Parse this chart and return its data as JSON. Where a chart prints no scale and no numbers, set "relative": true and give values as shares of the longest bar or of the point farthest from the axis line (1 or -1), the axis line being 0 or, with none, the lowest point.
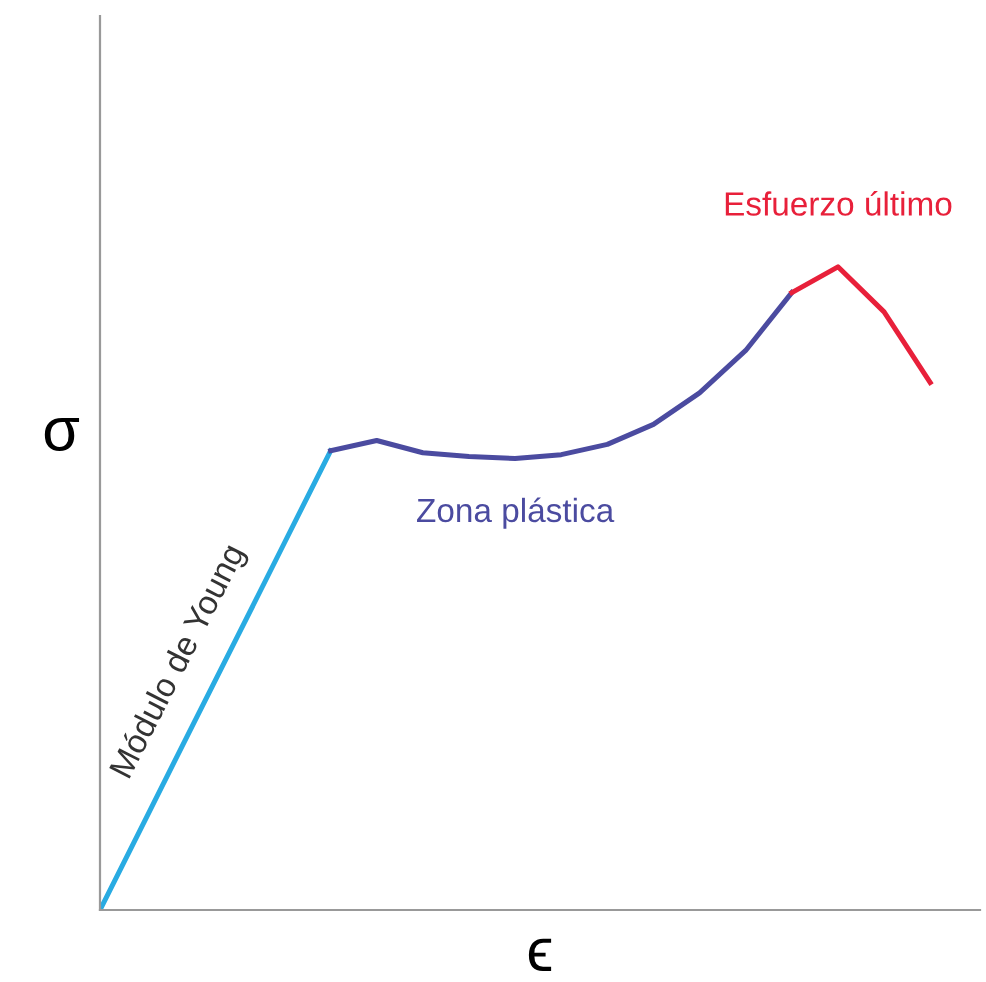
{
  "chart_data": {
    "type": "line",
    "relative": true,
    "xlabel": "ϵ",
    "ylabel": "σ",
    "marker": "none",
    "line_style": "solid",
    "categories": [
      null,
      null,
      null,
      null,
      null,
      null,
      null,
      null,
      null,
      null,
      null,
      null,
      null,
      null,
      null,
      null,
      null,
      null,
      null
    ],
    "series": [
      {
        "name": "Módulo de Young",
        "color": "#29abe2",
        "values": [
          0,
          0.143,
          0.286,
          0.428,
          0.571,
          0.714,
          null,
          null,
          null,
          null,
          null,
          null,
          null,
          null,
          null,
          null,
          null,
          null,
          null
        ]
      },
      {
        "name": "Zona plástica",
        "color": "#4b4ba0",
        "values": [
          null,
          null,
          null,
          null,
          null,
          0.714,
          0.73,
          0.711,
          0.705,
          0.702,
          0.708,
          0.724,
          0.755,
          0.804,
          0.87,
          0.96,
          null,
          null,
          null
        ]
      },
      {
        "name": "Esfuerzo último",
        "color": "#e8203a",
        "values": [
          null,
          null,
          null,
          null,
          null,
          null,
          null,
          null,
          null,
          null,
          null,
          null,
          null,
          null,
          null,
          0.96,
          1.0,
          0.93,
          0.82
        ]
      }
    ]
  }
}
